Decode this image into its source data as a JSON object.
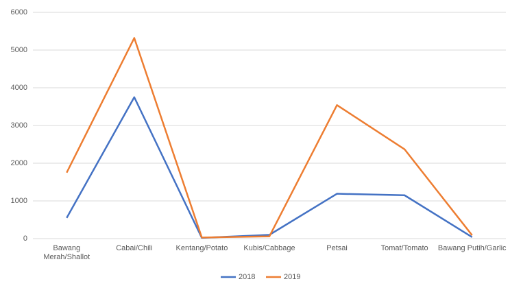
{
  "chart_data": {
    "type": "line",
    "categories": [
      "Bawang Merah/Shallot",
      "Cabai/Chili",
      "Kentang/Potato",
      "Kubis/Cabbage",
      "Petsai",
      "Tomat/Tomato",
      "Bawang Putih/Garlic"
    ],
    "series": [
      {
        "name": "2018",
        "color": "#4472c4",
        "values": [
          550,
          3750,
          20,
          100,
          1190,
          1150,
          40
        ]
      },
      {
        "name": "2019",
        "color": "#ed7d31",
        "values": [
          1750,
          5320,
          30,
          60,
          3540,
          2370,
          90
        ]
      }
    ],
    "ylim": [
      0,
      6000
    ],
    "yticks": [
      0,
      1000,
      2000,
      3000,
      4000,
      5000,
      6000
    ],
    "grid": true,
    "legend": "bottom"
  }
}
